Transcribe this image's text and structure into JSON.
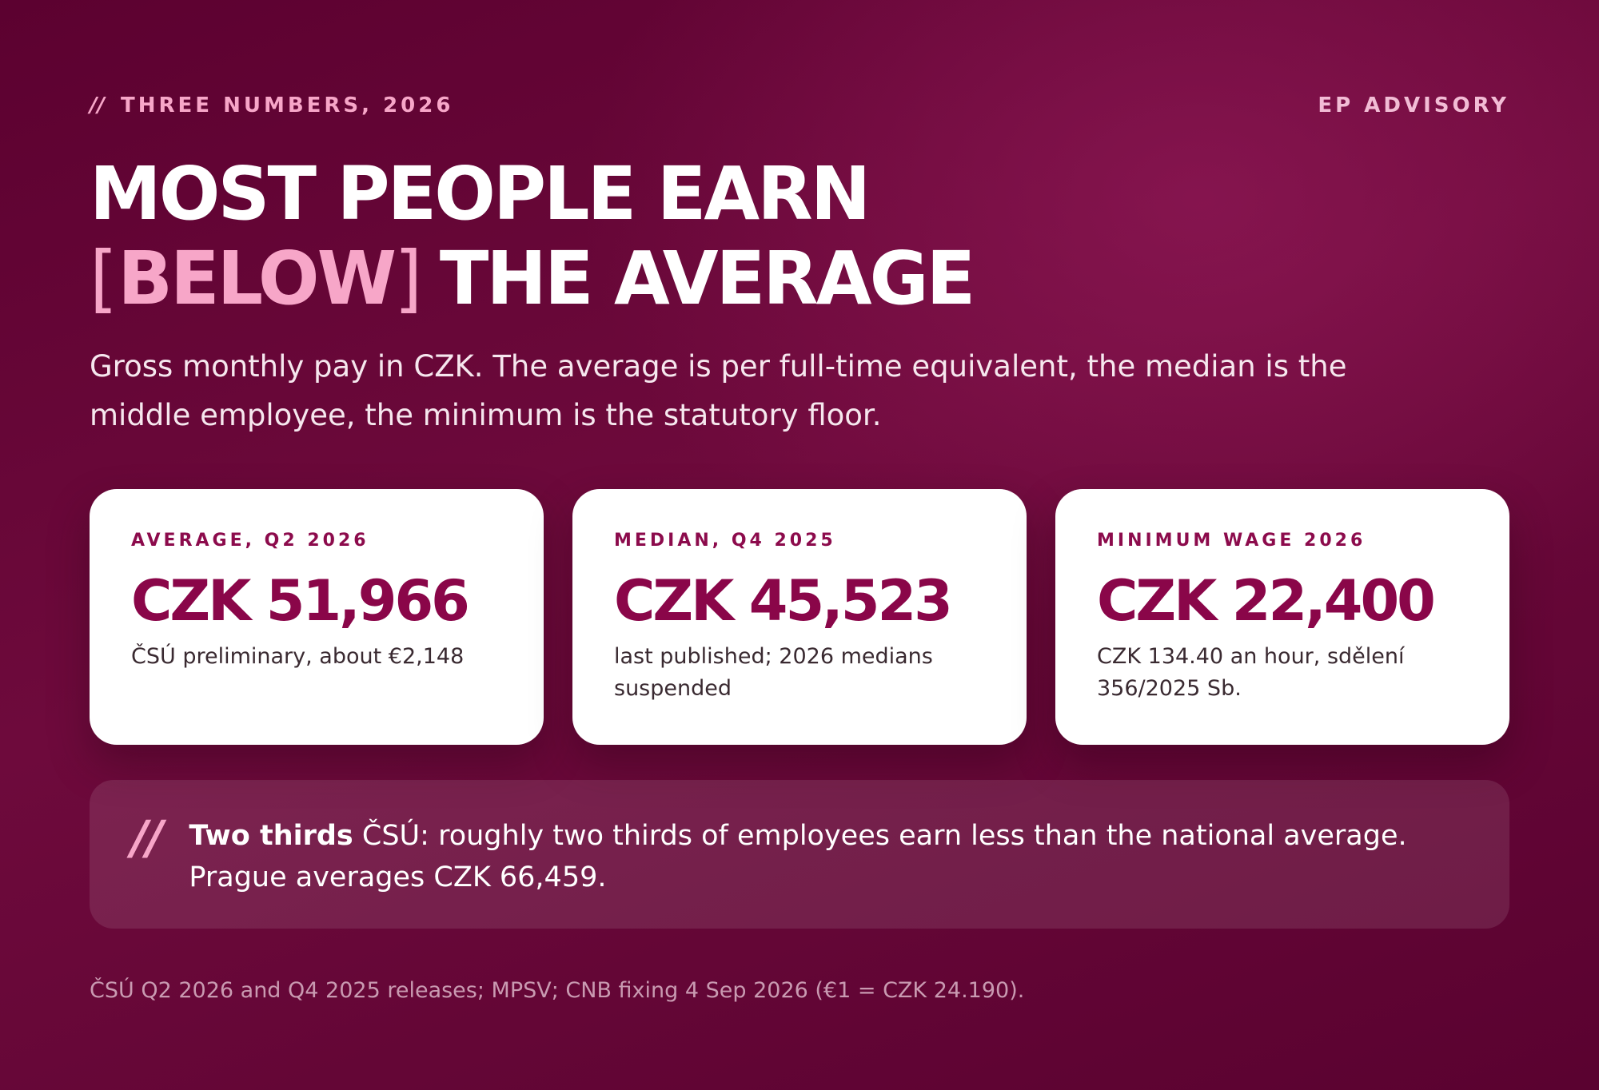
{
  "header": {
    "eyebrow_mark": "//",
    "eyebrow": "THREE NUMBERS, 2026",
    "brand": "EP ADVISORY"
  },
  "headline": {
    "line1": "MOST PEOPLE EARN",
    "bracket_open": "[",
    "highlight": "BELOW",
    "bracket_close": "]",
    "line2_rest": "THE AVERAGE"
  },
  "lede": "Gross monthly pay in CZK. The average is per full-time equivalent, the median is the middle employee, the minimum is the statutory floor.",
  "cards": [
    {
      "label": "AVERAGE, Q2 2026",
      "value": "CZK 51,966",
      "note": "ČSÚ preliminary, about €2,148"
    },
    {
      "label": "MEDIAN, Q4 2025",
      "value": "CZK 45,523",
      "note": "last published; 2026 medians suspended"
    },
    {
      "label": "MINIMUM WAGE 2026",
      "value": "CZK 22,400",
      "note": "CZK 134.40 an hour, sdělení 356/2025 Sb."
    }
  ],
  "quote": {
    "mark": "//",
    "lead": "Two thirds",
    "text": " ČSÚ: roughly two thirds of employees earn less than the national average. Prague averages CZK 66,459."
  },
  "footnote": "ČSÚ Q2 2026 and Q4 2025 releases; MPSV; CNB fixing 4 Sep 2026 (€1 = CZK 24.190).",
  "colors": {
    "background": "#6e0a3c",
    "accent_pink": "#f7a6c8",
    "card_value": "#8a0649",
    "card_bg": "#ffffff"
  }
}
